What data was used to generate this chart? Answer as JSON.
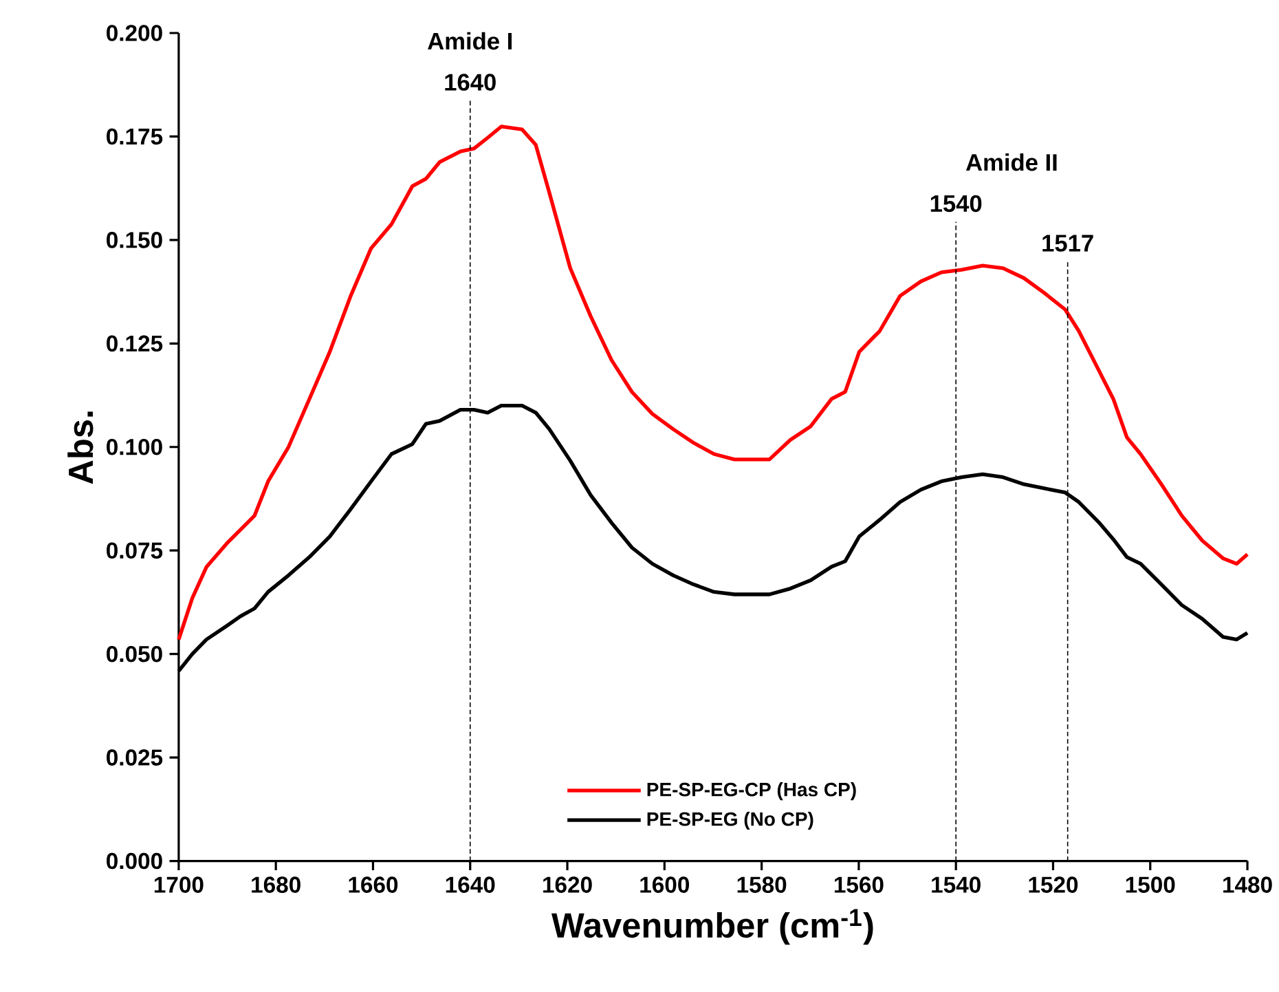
{
  "chart_data": {
    "type": "line",
    "xlabel": "Wavenumber (cm$^{-1}$)",
    "ylabel": "Abs.",
    "xlim": [
      1700,
      1480
    ],
    "ylim": [
      0,
      0.2
    ],
    "xticks": [
      1700,
      1680,
      1660,
      1640,
      1620,
      1600,
      1580,
      1560,
      1540,
      1520,
      1500,
      1480
    ],
    "yticks": [
      {
        "value": 0,
        "label": "0.000"
      },
      {
        "value": 0.025,
        "label": "0.025"
      },
      {
        "value": 0.05,
        "label": "0.050"
      },
      {
        "value": 0.075,
        "label": "0.075"
      },
      {
        "value": 0.1,
        "label": "0.100"
      },
      {
        "value": 0.125,
        "label": "0.125"
      },
      {
        "value": 0.15,
        "label": "0.150"
      },
      {
        "value": 0.175,
        "label": "0.175"
      },
      {
        "value": 0.2,
        "label": "0.200"
      }
    ],
    "x": [
      1700,
      1697.2,
      1694.3,
      1690.1,
      1687.3,
      1684.4,
      1681.6,
      1677.4,
      1673.1,
      1668.9,
      1664.6,
      1660.4,
      1656.2,
      1651.9,
      1649.1,
      1646.3,
      1642.0,
      1639.2,
      1636.4,
      1633.6,
      1629.3,
      1626.5,
      1623.7,
      1619.4,
      1615.2,
      1610.9,
      1606.7,
      1602.5,
      1598.2,
      1594.0,
      1589.8,
      1585.6,
      1581.2,
      1578.4,
      1574.1,
      1569.9,
      1565.6,
      1562.8,
      1559.9,
      1555.7,
      1551.5,
      1547.2,
      1543.0,
      1538.8,
      1534.5,
      1530.3,
      1526.0,
      1521.8,
      1517.5,
      1514.7,
      1510.5,
      1507.6,
      1504.8,
      1502.0,
      1497.7,
      1493.5,
      1489.3,
      1485.0,
      1482.2,
      1480.0
    ],
    "series": [
      {
        "name": "PE-SP-EG-CP (Has CP)",
        "color": "#ff0000",
        "values": [
          0.0535,
          0.0635,
          0.071,
          0.0767,
          0.08,
          0.0834,
          0.0917,
          0.1,
          0.1116,
          0.123,
          0.1365,
          0.148,
          0.1538,
          0.163,
          0.1648,
          0.1688,
          0.1714,
          0.1721,
          0.1747,
          0.1774,
          0.1767,
          0.173,
          0.1614,
          0.1432,
          0.1316,
          0.121,
          0.1133,
          0.108,
          0.1043,
          0.101,
          0.0983,
          0.097,
          0.097,
          0.097,
          0.1017,
          0.105,
          0.1116,
          0.1133,
          0.123,
          0.128,
          0.1365,
          0.14,
          0.1422,
          0.1428,
          0.1438,
          0.1432,
          0.1408,
          0.1372,
          0.1332,
          0.128,
          0.1183,
          0.1116,
          0.1023,
          0.0983,
          0.091,
          0.0834,
          0.0774,
          0.0731,
          0.0718,
          0.0741
        ]
      },
      {
        "name": "PE-SP-EG (No CP)",
        "color": "#000000",
        "values": [
          0.0459,
          0.05,
          0.0535,
          0.0568,
          0.0591,
          0.061,
          0.065,
          0.069,
          0.0734,
          0.0784,
          0.085,
          0.0917,
          0.0983,
          0.1007,
          0.1056,
          0.1063,
          0.109,
          0.109,
          0.1083,
          0.11,
          0.11,
          0.1083,
          0.1043,
          0.0967,
          0.0884,
          0.0817,
          0.0757,
          0.0718,
          0.069,
          0.0668,
          0.065,
          0.0644,
          0.0644,
          0.0644,
          0.0658,
          0.0678,
          0.0711,
          0.0724,
          0.0784,
          0.0824,
          0.0867,
          0.0897,
          0.0917,
          0.0927,
          0.0934,
          0.0927,
          0.091,
          0.09,
          0.089,
          0.0867,
          0.0817,
          0.0777,
          0.0734,
          0.0718,
          0.0668,
          0.0618,
          0.0585,
          0.0541,
          0.0535,
          0.0551
        ]
      }
    ],
    "ref_lines": [
      {
        "axis": "x",
        "value": 1640,
        "label": "1640",
        "color": "#000000",
        "line_style": "dashed"
      },
      {
        "axis": "x",
        "value": 1540,
        "label": "1540",
        "color": "#000000",
        "line_style": "dashed"
      },
      {
        "axis": "x",
        "value": 1517,
        "label": "1517",
        "color": "#000000",
        "line_style": "dashed"
      }
    ],
    "annotations": [
      "Amide I",
      "Amide II"
    ],
    "legend": "bottom",
    "grid": false,
    "marker": "none",
    "line_style": "solid"
  }
}
